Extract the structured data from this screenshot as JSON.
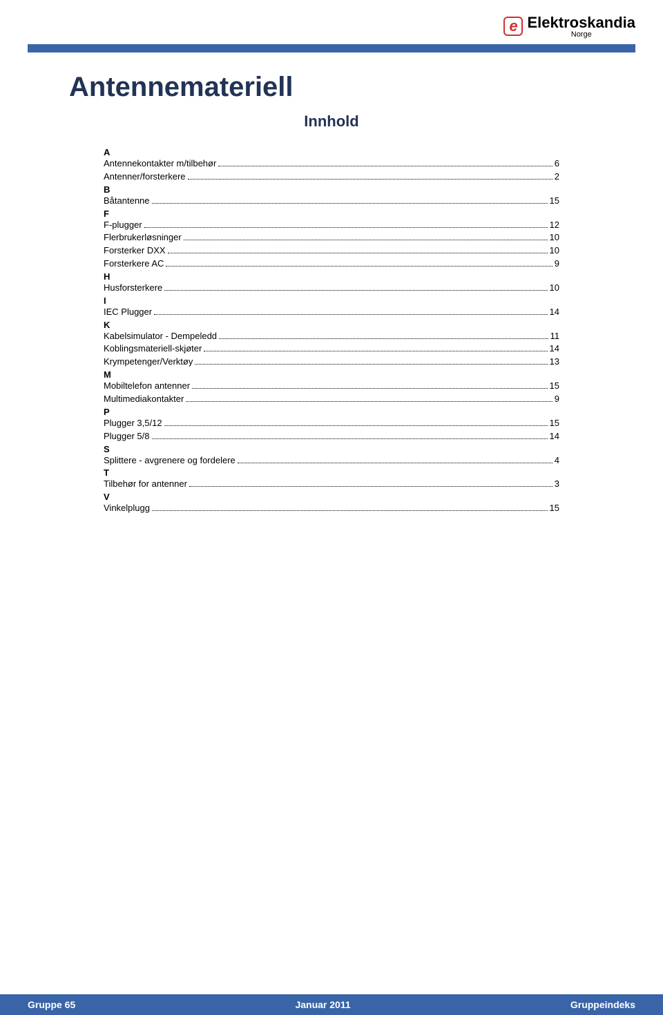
{
  "brand": {
    "mark": "e",
    "name": "Elektroskandia",
    "country": "Norge",
    "mark_color": "#d32f2f",
    "text_color": "#000000"
  },
  "colors": {
    "accent_bar": "#3a64a8",
    "title": "#223355",
    "text": "#000000",
    "background": "#ffffff"
  },
  "typography": {
    "title_fontsize": 40,
    "subtitle_fontsize": 22,
    "toc_fontsize": 13,
    "logo_fontsize": 22
  },
  "page": {
    "title": "Antennemateriell",
    "subtitle": "Innhold"
  },
  "toc": {
    "sections": [
      {
        "letter": "A",
        "entries": [
          {
            "label": "Antennekontakter m/tilbehør",
            "page": "6"
          },
          {
            "label": "Antenner/forsterkere",
            "page": "2"
          }
        ]
      },
      {
        "letter": "B",
        "entries": [
          {
            "label": "Båtantenne",
            "page": "15"
          }
        ]
      },
      {
        "letter": "F",
        "entries": [
          {
            "label": "F-plugger",
            "page": "12"
          },
          {
            "label": "Flerbrukerløsninger",
            "page": "10"
          },
          {
            "label": "Forsterker DXX",
            "page": "10"
          },
          {
            "label": "Forsterkere AC",
            "page": "9"
          }
        ]
      },
      {
        "letter": "H",
        "entries": [
          {
            "label": "Husforsterkere",
            "page": "10"
          }
        ]
      },
      {
        "letter": "I",
        "entries": [
          {
            "label": "IEC Plugger",
            "page": "14"
          }
        ]
      },
      {
        "letter": "K",
        "entries": [
          {
            "label": "Kabelsimulator - Dempeledd",
            "page": "11"
          },
          {
            "label": "Koblingsmateriell-skjøter",
            "page": "14"
          },
          {
            "label": "Krympetenger/Verktøy",
            "page": "13"
          }
        ]
      },
      {
        "letter": "M",
        "entries": [
          {
            "label": "Mobiltelefon antenner",
            "page": "15"
          },
          {
            "label": "Multimediakontakter",
            "page": "9"
          }
        ]
      },
      {
        "letter": "P",
        "entries": [
          {
            "label": "Plugger 3,5/12",
            "page": "15"
          },
          {
            "label": "Plugger 5/8",
            "page": "14"
          }
        ]
      },
      {
        "letter": "S",
        "entries": [
          {
            "label": "Splittere - avgrenere og fordelere",
            "page": "4"
          }
        ]
      },
      {
        "letter": "T",
        "entries": [
          {
            "label": "Tilbehør for antenner",
            "page": "3"
          }
        ]
      },
      {
        "letter": "V",
        "entries": [
          {
            "label": "Vinkelplugg",
            "page": "15"
          }
        ]
      }
    ]
  },
  "footer": {
    "left": "Gruppe 65",
    "center": "Januar 2011",
    "right": "Gruppeindeks"
  }
}
